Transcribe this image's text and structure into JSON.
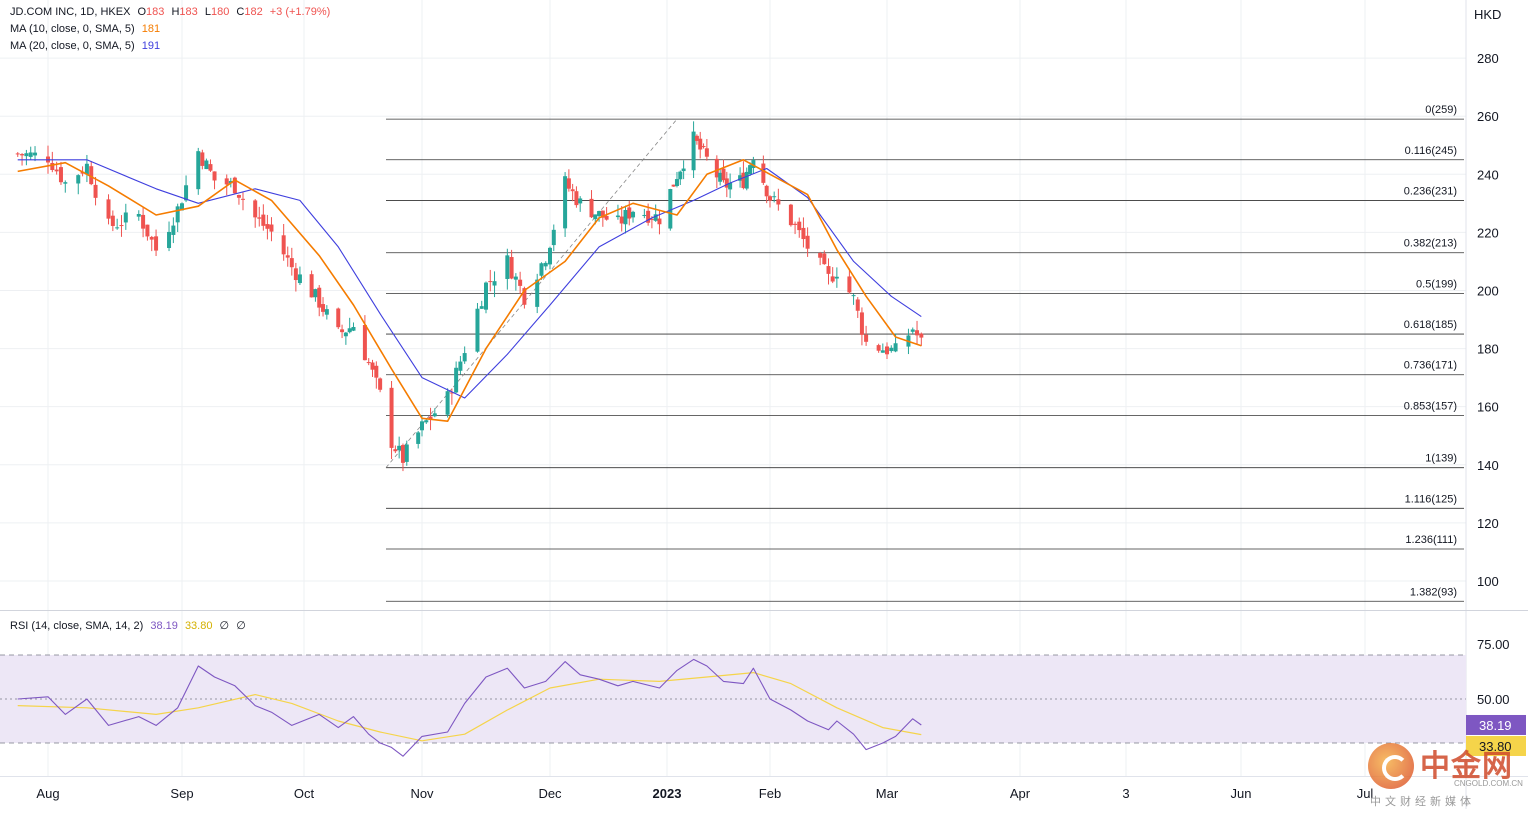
{
  "header": {
    "symbol": "JD.COM INC, 1D, HKEX",
    "o_label": "O",
    "o_value": "183",
    "h_label": "H",
    "h_value": "183",
    "l_label": "L",
    "l_value": "180",
    "c_label": "C",
    "c_value": "182",
    "change": "+3 (+1.79%)",
    "ma10_label": "MA (10, close, 0, SMA, 5)",
    "ma10_value": "181",
    "ma20_label": "MA (20, close, 0, SMA, 5)",
    "ma20_value": "191",
    "rsi_label": "RSI (14, close, SMA, 14, 2)",
    "rsi_value": "38.19",
    "rsi_ma_value": "33.80",
    "rsi_extra1": "∅",
    "rsi_extra2": "∅"
  },
  "colors": {
    "up": "#26a69a",
    "down": "#ef5350",
    "ma10": "#f57c00",
    "ma20": "#3f3fde",
    "rsi": "#7e57c2",
    "rsi_ma": "#f5d44a",
    "rsi_band": "#ede7f6",
    "fib": "#333333",
    "grid": "#eef0f3",
    "text": "#131722"
  },
  "watermark": {
    "brand": "中金网",
    "url": "CNGOLD.COM.CN",
    "tagline": "中文财经新媒体"
  },
  "chart_data": {
    "type": "candlestick",
    "currency": "HKD",
    "price_axis": {
      "ticks": [
        100,
        120,
        140,
        160,
        180,
        200,
        220,
        240,
        260,
        280
      ],
      "range": [
        90,
        300
      ]
    },
    "time_axis": {
      "labels": [
        "Aug",
        "Sep",
        "Oct",
        "Nov",
        "Dec",
        "2023",
        "Feb",
        "Mar",
        "Apr",
        "3",
        "Jun",
        "Jul"
      ]
    },
    "fibonacci": [
      {
        "label": "0(259)",
        "price": 259
      },
      {
        "label": "0.116(245)",
        "price": 245
      },
      {
        "label": "0.236(231)",
        "price": 231
      },
      {
        "label": "0.382(213)",
        "price": 213
      },
      {
        "label": "0.5(199)",
        "price": 199
      },
      {
        "label": "0.618(185)",
        "price": 185
      },
      {
        "label": "0.736(171)",
        "price": 171
      },
      {
        "label": "0.853(157)",
        "price": 157
      },
      {
        "label": "1(139)",
        "price": 139
      },
      {
        "label": "1.116(125)",
        "price": 125
      },
      {
        "label": "1.236(111)",
        "price": 111
      },
      {
        "label": "1.382(93)",
        "price": 93
      }
    ],
    "close_path": [
      [
        "2022-07-25",
        247
      ],
      [
        "2022-08-01",
        246
      ],
      [
        "2022-08-05",
        237
      ],
      [
        "2022-08-10",
        243
      ],
      [
        "2022-08-15",
        222
      ],
      [
        "2022-08-22",
        226
      ],
      [
        "2022-08-26",
        214
      ],
      [
        "2022-08-31",
        228
      ],
      [
        "2022-09-05",
        248
      ],
      [
        "2022-09-09",
        238
      ],
      [
        "2022-09-14",
        236
      ],
      [
        "2022-09-19",
        225
      ],
      [
        "2022-09-23",
        220
      ],
      [
        "2022-09-28",
        208
      ],
      [
        "2022-10-05",
        196
      ],
      [
        "2022-10-10",
        185
      ],
      [
        "2022-10-14",
        188
      ],
      [
        "2022-10-18",
        175
      ],
      [
        "2022-10-21",
        164
      ],
      [
        "2022-10-24",
        148
      ],
      [
        "2022-10-27",
        142
      ],
      [
        "2022-11-01",
        153
      ],
      [
        "2022-11-07",
        163
      ],
      [
        "2022-11-11",
        180
      ],
      [
        "2022-11-16",
        202
      ],
      [
        "2022-11-21",
        210
      ],
      [
        "2022-11-25",
        198
      ],
      [
        "2022-11-30",
        212
      ],
      [
        "2022-12-05",
        237
      ],
      [
        "2022-12-09",
        230
      ],
      [
        "2022-12-14",
        226
      ],
      [
        "2022-12-19",
        223
      ],
      [
        "2022-12-23",
        228
      ],
      [
        "2022-12-30",
        225
      ],
      [
        "2023-01-04",
        240
      ],
      [
        "2023-01-09",
        252
      ],
      [
        "2023-01-13",
        245
      ],
      [
        "2023-01-18",
        236
      ],
      [
        "2023-01-24",
        238
      ],
      [
        "2023-01-27",
        247
      ],
      [
        "2023-02-01",
        232
      ],
      [
        "2023-02-06",
        224
      ],
      [
        "2023-02-10",
        215
      ],
      [
        "2023-02-15",
        204
      ],
      [
        "2023-02-17",
        207
      ],
      [
        "2023-02-21",
        197
      ],
      [
        "2023-02-24",
        182
      ],
      [
        "2023-02-28",
        180
      ],
      [
        "2023-03-03",
        179
      ],
      [
        "2023-03-07",
        187
      ],
      [
        "2023-03-09",
        182
      ]
    ],
    "ma10_path": [
      [
        "2022-07-25",
        241
      ],
      [
        "2022-08-05",
        244
      ],
      [
        "2022-08-15",
        236
      ],
      [
        "2022-08-26",
        226
      ],
      [
        "2022-09-05",
        229
      ],
      [
        "2022-09-14",
        238
      ],
      [
        "2022-09-23",
        231
      ],
      [
        "2022-10-05",
        212
      ],
      [
        "2022-10-14",
        195
      ],
      [
        "2022-10-24",
        173
      ],
      [
        "2022-11-01",
        156
      ],
      [
        "2022-11-07",
        155
      ],
      [
        "2022-11-16",
        180
      ],
      [
        "2022-11-25",
        200
      ],
      [
        "2022-12-05",
        210
      ],
      [
        "2022-12-14",
        225
      ],
      [
        "2022-12-23",
        230
      ],
      [
        "2023-01-04",
        226
      ],
      [
        "2023-01-13",
        240
      ],
      [
        "2023-01-24",
        245
      ],
      [
        "2023-02-01",
        240
      ],
      [
        "2023-02-10",
        233
      ],
      [
        "2023-02-17",
        214
      ],
      [
        "2023-02-24",
        198
      ],
      [
        "2023-03-03",
        184
      ],
      [
        "2023-03-09",
        181
      ]
    ],
    "ma20_path": [
      [
        "2022-07-25",
        245
      ],
      [
        "2022-08-10",
        245
      ],
      [
        "2022-08-26",
        235
      ],
      [
        "2022-09-05",
        230
      ],
      [
        "2022-09-19",
        235
      ],
      [
        "2022-09-30",
        231
      ],
      [
        "2022-10-10",
        215
      ],
      [
        "2022-10-21",
        192
      ],
      [
        "2022-11-01",
        170
      ],
      [
        "2022-11-11",
        163
      ],
      [
        "2022-11-21",
        178
      ],
      [
        "2022-12-01",
        195
      ],
      [
        "2022-12-14",
        215
      ],
      [
        "2022-12-28",
        225
      ],
      [
        "2023-01-09",
        231
      ],
      [
        "2023-01-20",
        237
      ],
      [
        "2023-01-31",
        242
      ],
      [
        "2023-02-10",
        232
      ],
      [
        "2023-02-21",
        210
      ],
      [
        "2023-03-02",
        198
      ],
      [
        "2023-03-09",
        191
      ]
    ],
    "rsi": {
      "levels": [
        70,
        50,
        30
      ],
      "axis_ticks": [
        75.0,
        50.0
      ],
      "axis_range": [
        15,
        90
      ],
      "latest": 38.19,
      "latest_ma": 33.8,
      "rsi_path": [
        [
          "2022-07-25",
          50
        ],
        [
          "2022-08-01",
          51
        ],
        [
          "2022-08-05",
          43
        ],
        [
          "2022-08-10",
          50
        ],
        [
          "2022-08-15",
          38
        ],
        [
          "2022-08-22",
          42
        ],
        [
          "2022-08-26",
          38
        ],
        [
          "2022-08-31",
          46
        ],
        [
          "2022-09-05",
          65
        ],
        [
          "2022-09-09",
          60
        ],
        [
          "2022-09-14",
          56
        ],
        [
          "2022-09-19",
          47
        ],
        [
          "2022-09-23",
          44
        ],
        [
          "2022-09-28",
          38
        ],
        [
          "2022-10-05",
          43
        ],
        [
          "2022-10-10",
          37
        ],
        [
          "2022-10-14",
          42
        ],
        [
          "2022-10-18",
          34
        ],
        [
          "2022-10-21",
          30
        ],
        [
          "2022-10-24",
          28
        ],
        [
          "2022-10-27",
          24
        ],
        [
          "2022-11-01",
          33
        ],
        [
          "2022-11-07",
          35
        ],
        [
          "2022-11-11",
          48
        ],
        [
          "2022-11-16",
          60
        ],
        [
          "2022-11-21",
          64
        ],
        [
          "2022-11-25",
          55
        ],
        [
          "2022-11-30",
          58
        ],
        [
          "2022-12-05",
          67
        ],
        [
          "2022-12-09",
          61
        ],
        [
          "2022-12-14",
          59
        ],
        [
          "2022-12-19",
          56
        ],
        [
          "2022-12-23",
          58
        ],
        [
          "2022-12-30",
          55
        ],
        [
          "2023-01-04",
          63
        ],
        [
          "2023-01-09",
          68
        ],
        [
          "2023-01-13",
          65
        ],
        [
          "2023-01-18",
          58
        ],
        [
          "2023-01-24",
          57
        ],
        [
          "2023-01-27",
          64
        ],
        [
          "2023-02-01",
          50
        ],
        [
          "2023-02-06",
          45
        ],
        [
          "2023-02-10",
          40
        ],
        [
          "2023-02-15",
          36
        ],
        [
          "2023-02-17",
          40
        ],
        [
          "2023-02-21",
          34
        ],
        [
          "2023-02-24",
          27
        ],
        [
          "2023-02-28",
          30
        ],
        [
          "2023-03-03",
          33
        ],
        [
          "2023-03-07",
          41
        ],
        [
          "2023-03-09",
          38.19
        ]
      ],
      "rsi_ma_path": [
        [
          "2022-07-25",
          47
        ],
        [
          "2022-08-10",
          46
        ],
        [
          "2022-08-26",
          43
        ],
        [
          "2022-09-05",
          46
        ],
        [
          "2022-09-19",
          52
        ],
        [
          "2022-09-28",
          48
        ],
        [
          "2022-10-10",
          40
        ],
        [
          "2022-10-21",
          35
        ],
        [
          "2022-11-01",
          31
        ],
        [
          "2022-11-11",
          34
        ],
        [
          "2022-11-21",
          45
        ],
        [
          "2022-12-01",
          55
        ],
        [
          "2022-12-14",
          59
        ],
        [
          "2022-12-30",
          58
        ],
        [
          "2023-01-13",
          60
        ],
        [
          "2023-01-27",
          62
        ],
        [
          "2023-02-06",
          57
        ],
        [
          "2023-02-17",
          46
        ],
        [
          "2023-02-28",
          37
        ],
        [
          "2023-03-09",
          33.8
        ]
      ]
    }
  }
}
